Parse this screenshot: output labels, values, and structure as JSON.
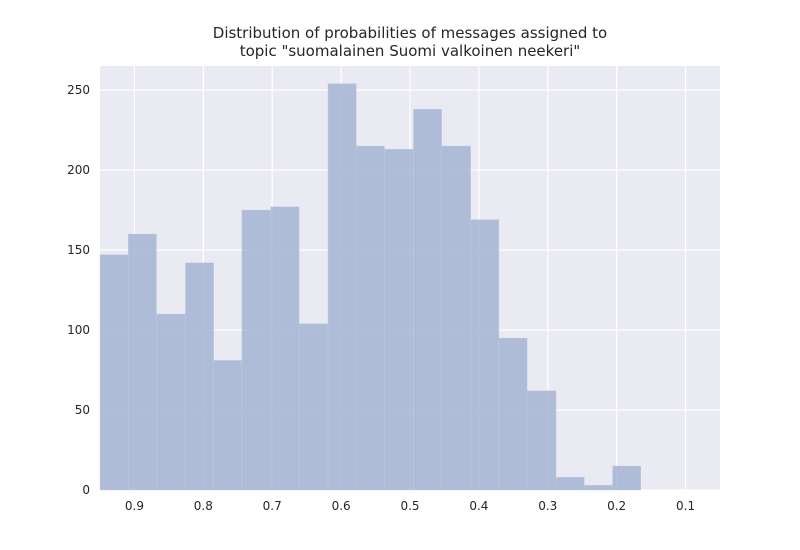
{
  "chart_data": {
    "type": "bar",
    "title_lines": [
      "Distribution of probabilities of messages assigned to",
      "topic \"suomalainen Suomi valkoinen neekeri\""
    ],
    "xlabel": "",
    "ylabel": "",
    "x_inverted": true,
    "xlim": [
      0.95,
      0.05
    ],
    "ylim": [
      0,
      265
    ],
    "x_ticks": [
      0.9,
      0.8,
      0.7,
      0.6,
      0.5,
      0.4,
      0.3,
      0.2,
      0.1
    ],
    "x_tick_labels": [
      "0.9",
      "0.8",
      "0.7",
      "0.6",
      "0.5",
      "0.4",
      "0.3",
      "0.2",
      "0.1"
    ],
    "y_ticks": [
      0,
      50,
      100,
      150,
      200,
      250
    ],
    "y_tick_labels": [
      "0",
      "50",
      "100",
      "150",
      "200",
      "250"
    ],
    "grid": true,
    "bar_color": "#a5b4d4",
    "background_color": "#eaeaf2",
    "bins": [
      {
        "x_start": 0.95,
        "x_end": 0.909,
        "value": 147
      },
      {
        "x_start": 0.909,
        "x_end": 0.868,
        "value": 160
      },
      {
        "x_start": 0.868,
        "x_end": 0.826,
        "value": 110
      },
      {
        "x_start": 0.826,
        "x_end": 0.785,
        "value": 142
      },
      {
        "x_start": 0.785,
        "x_end": 0.744,
        "value": 81
      },
      {
        "x_start": 0.744,
        "x_end": 0.702,
        "value": 175
      },
      {
        "x_start": 0.702,
        "x_end": 0.661,
        "value": 177
      },
      {
        "x_start": 0.661,
        "x_end": 0.619,
        "value": 104
      },
      {
        "x_start": 0.619,
        "x_end": 0.578,
        "value": 254
      },
      {
        "x_start": 0.578,
        "x_end": 0.537,
        "value": 215
      },
      {
        "x_start": 0.537,
        "x_end": 0.495,
        "value": 213
      },
      {
        "x_start": 0.495,
        "x_end": 0.454,
        "value": 238
      },
      {
        "x_start": 0.454,
        "x_end": 0.412,
        "value": 215
      },
      {
        "x_start": 0.412,
        "x_end": 0.371,
        "value": 169
      },
      {
        "x_start": 0.371,
        "x_end": 0.33,
        "value": 95
      },
      {
        "x_start": 0.33,
        "x_end": 0.288,
        "value": 62
      },
      {
        "x_start": 0.288,
        "x_end": 0.247,
        "value": 8
      },
      {
        "x_start": 0.247,
        "x_end": 0.206,
        "value": 3
      },
      {
        "x_start": 0.206,
        "x_end": 0.165,
        "value": 15
      }
    ]
  }
}
